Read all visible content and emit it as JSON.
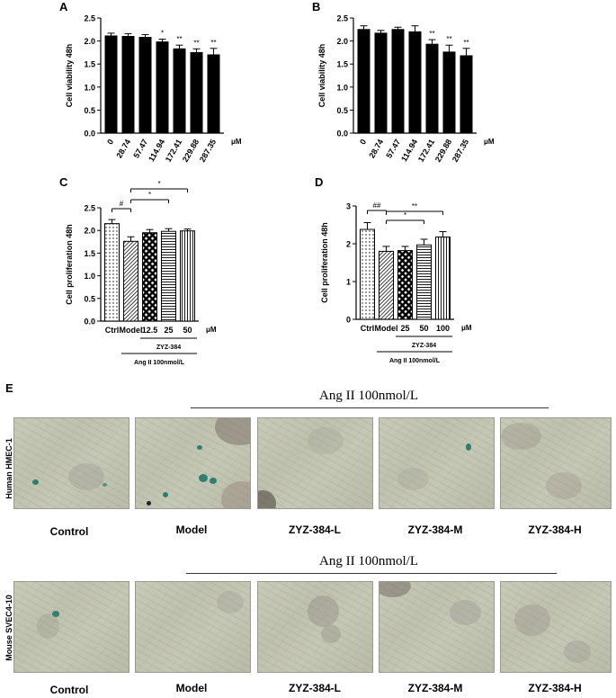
{
  "charts": [
    {
      "panel": "A",
      "type": "bar",
      "ylabel": "Cell viability  48h",
      "ylim": [
        0,
        2.5
      ],
      "yticks": [
        "0.0",
        "0.5",
        "1.0",
        "1.5",
        "2.0",
        "2.5"
      ],
      "categories": [
        "0",
        "28.74",
        "57.47",
        "114.94",
        "172.41",
        "229.88",
        "287.35"
      ],
      "values": [
        2.11,
        2.1,
        2.08,
        1.98,
        1.83,
        1.75,
        1.7
      ],
      "errors": [
        0.06,
        0.06,
        0.06,
        0.06,
        0.08,
        0.08,
        0.14
      ],
      "sig": [
        "",
        "",
        "",
        "*",
        "**",
        "**",
        "**"
      ],
      "unit": "μM"
    },
    {
      "panel": "B",
      "type": "bar",
      "ylabel": "Cell viability  48h",
      "ylim": [
        0,
        2.5
      ],
      "yticks": [
        "0.0",
        "0.5",
        "1.0",
        "1.5",
        "2.0",
        "2.5"
      ],
      "categories": [
        "0",
        "28.74",
        "57.47",
        "114.94",
        "172.41",
        "229.88",
        "287.35"
      ],
      "values": [
        2.25,
        2.17,
        2.25,
        2.2,
        1.93,
        1.76,
        1.68
      ],
      "errors": [
        0.08,
        0.06,
        0.05,
        0.13,
        0.1,
        0.15,
        0.16
      ],
      "sig": [
        "",
        "",
        "",
        "",
        "**",
        "**",
        "**"
      ],
      "unit": "μM"
    },
    {
      "panel": "C",
      "type": "bar",
      "ylabel": "Cell proliferation  48h",
      "ylim": [
        0,
        2.5
      ],
      "yticks": [
        "0.0",
        "0.5",
        "1.0",
        "1.5",
        "2.0",
        "2.5"
      ],
      "categories": [
        "Ctrl",
        "Model",
        "12.5",
        "25",
        "50"
      ],
      "values": [
        2.15,
        1.76,
        1.95,
        1.98,
        1.99
      ],
      "errors": [
        0.09,
        0.1,
        0.07,
        0.06,
        0.04
      ],
      "patterns": [
        "dots",
        "hatch",
        "check",
        "hlines",
        "vlines"
      ],
      "unit": "μM",
      "group_label": "ZYZ-384",
      "treatment_label": "Ang II 100nmol/L",
      "brackets": [
        {
          "from": 0,
          "to": 1,
          "label": "#"
        },
        {
          "from": 1,
          "to": 3,
          "label": "*"
        },
        {
          "from": 1,
          "to": 4,
          "label": "*"
        }
      ]
    },
    {
      "panel": "D",
      "type": "bar",
      "ylabel": "Cell proliferation  48h",
      "ylim": [
        0,
        3
      ],
      "yticks": [
        "0",
        "1",
        "2",
        "3"
      ],
      "categories": [
        "Ctrl",
        "Model",
        "25",
        "50",
        "100"
      ],
      "values": [
        2.38,
        1.8,
        1.82,
        1.97,
        2.18
      ],
      "errors": [
        0.18,
        0.13,
        0.11,
        0.15,
        0.14
      ],
      "patterns": [
        "dots",
        "hatch",
        "check",
        "hlines",
        "vlines"
      ],
      "unit": "μM",
      "group_label": "ZYZ-384",
      "treatment_label": "Ang II 100nmol/L",
      "brackets": [
        {
          "from": 0,
          "to": 1,
          "label": "##"
        },
        {
          "from": 1,
          "to": 3,
          "label": "*"
        },
        {
          "from": 1,
          "to": 4,
          "label": "**"
        }
      ]
    }
  ],
  "panelE": {
    "letter": "E",
    "rows": [
      {
        "label": "Human HMEC-1",
        "treatment": "Ang II 100nmol/L",
        "captions": [
          "Control",
          "Model",
          "ZYZ-384-L",
          "ZYZ-384-M",
          "ZYZ-384-H"
        ]
      },
      {
        "label": "Mouse SVEC4-10",
        "treatment": "Ang II 100nmol/L",
        "captions": [
          "Control",
          "Model",
          "ZYZ-384-L",
          "ZYZ-384-M",
          "ZYZ-384-H"
        ]
      }
    ]
  }
}
